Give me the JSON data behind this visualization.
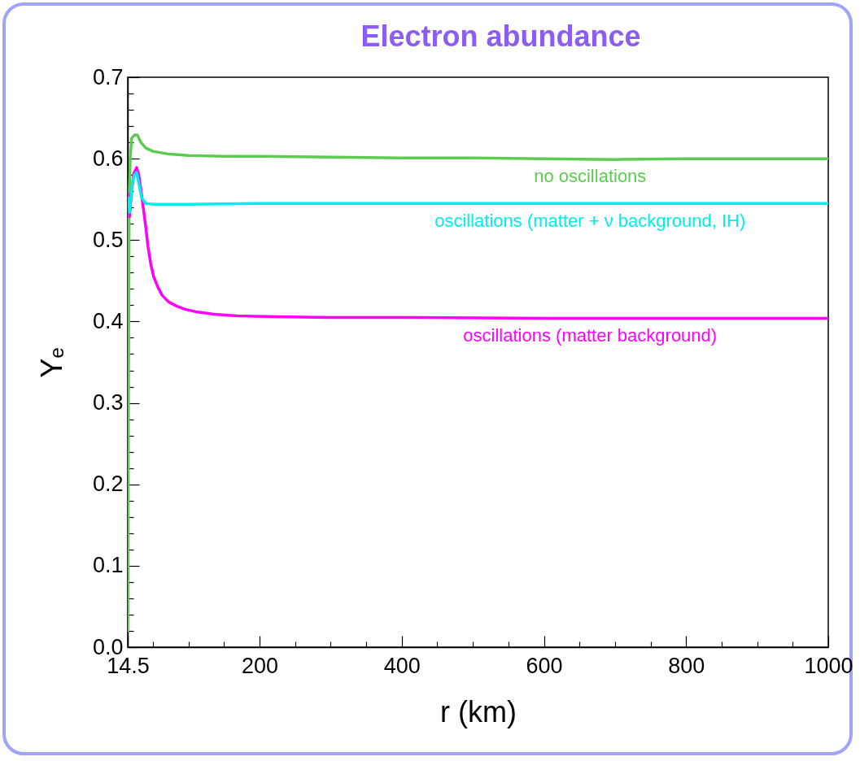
{
  "chart_data": {
    "type": "line",
    "title": "Electron abundance",
    "xlabel": "r (km)",
    "ylabel": "Yₑ",
    "xlim": [
      14.5,
      1000
    ],
    "ylim": [
      0,
      0.7
    ],
    "xticks": [
      14.5,
      {
        "value": 50,
        "label": null
      },
      {
        "value": 100,
        "label": null
      },
      {
        "value": 150,
        "label": null
      },
      200,
      {
        "value": 250,
        "label": null
      },
      {
        "value": 300,
        "label": null
      },
      {
        "value": 350,
        "label": null
      },
      400,
      {
        "value": 450,
        "label": null
      },
      {
        "value": 500,
        "label": null
      },
      {
        "value": 550,
        "label": null
      },
      600,
      {
        "value": 650,
        "label": null
      },
      {
        "value": 700,
        "label": null
      },
      {
        "value": 750,
        "label": null
      },
      800,
      {
        "value": 850,
        "label": null
      },
      {
        "value": 900,
        "label": null
      },
      {
        "value": 950,
        "label": null
      },
      1000
    ],
    "yticks": [
      {
        "value": 0,
        "label": "0.0"
      },
      {
        "value": 0.02,
        "label": null
      },
      {
        "value": 0.04,
        "label": null
      },
      {
        "value": 0.06,
        "label": null
      },
      {
        "value": 0.08,
        "label": null
      },
      0.1,
      {
        "value": 0.12,
        "label": null
      },
      {
        "value": 0.14,
        "label": null
      },
      {
        "value": 0.16,
        "label": null
      },
      {
        "value": 0.18,
        "label": null
      },
      0.2,
      {
        "value": 0.22,
        "label": null
      },
      {
        "value": 0.24,
        "label": null
      },
      {
        "value": 0.26,
        "label": null
      },
      {
        "value": 0.28,
        "label": null
      },
      0.3,
      {
        "value": 0.32,
        "label": null
      },
      {
        "value": 0.34,
        "label": null
      },
      {
        "value": 0.36,
        "label": null
      },
      {
        "value": 0.38,
        "label": null
      },
      0.4,
      {
        "value": 0.42,
        "label": null
      },
      {
        "value": 0.44,
        "label": null
      },
      {
        "value": 0.46,
        "label": null
      },
      {
        "value": 0.48,
        "label": null
      },
      0.5,
      {
        "value": 0.52,
        "label": null
      },
      {
        "value": 0.54,
        "label": null
      },
      {
        "value": 0.56,
        "label": null
      },
      {
        "value": 0.58,
        "label": null
      },
      0.6,
      {
        "value": 0.62,
        "label": null
      },
      {
        "value": 0.64,
        "label": null
      },
      {
        "value": 0.66,
        "label": null
      },
      {
        "value": 0.68,
        "label": null
      },
      0.7
    ],
    "grid": false,
    "legend": false,
    "line_style": "solid",
    "series": [
      {
        "name": "no oscillations",
        "color": "#5ccc50",
        "x": [
          14.5,
          15.5,
          16.5,
          18,
          20,
          24,
          28,
          33,
          40,
          50,
          70,
          100,
          150,
          200,
          300,
          400,
          500,
          600,
          700,
          800,
          900,
          1000
        ],
        "values": [
          0.02,
          0.3,
          0.55,
          0.6,
          0.625,
          0.629,
          0.629,
          0.62,
          0.613,
          0.609,
          0.606,
          0.604,
          0.603,
          0.603,
          0.602,
          0.601,
          0.601,
          0.6,
          0.599,
          0.6,
          0.6,
          0.6
        ]
      },
      {
        "name": "oscillations (matter background)",
        "color": "#ff00ff",
        "x": [
          14.5,
          17,
          20,
          23,
          27,
          30,
          33,
          36,
          40,
          43,
          47,
          51,
          57,
          63,
          72,
          83,
          95,
          110,
          135,
          168,
          220,
          300,
          400,
          600,
          800,
          1000
        ],
        "values": [
          0.557,
          0.529,
          0.56,
          0.582,
          0.589,
          0.58,
          0.562,
          0.542,
          0.515,
          0.492,
          0.47,
          0.455,
          0.442,
          0.432,
          0.424,
          0.419,
          0.415,
          0.412,
          0.409,
          0.407,
          0.406,
          0.405,
          0.405,
          0.404,
          0.404,
          0.404
        ]
      },
      {
        "name": "oscillations (matter + ν background, IH)",
        "color": "#00eeee",
        "x": [
          15.5,
          17,
          19,
          21,
          24,
          27,
          30,
          34,
          40,
          50,
          70,
          100,
          200,
          400,
          600,
          800,
          1000
        ],
        "values": [
          0.552,
          0.534,
          0.55,
          0.57,
          0.58,
          0.583,
          0.57,
          0.552,
          0.545,
          0.544,
          0.544,
          0.544,
          0.545,
          0.545,
          0.545,
          0.545,
          0.545
        ]
      }
    ]
  }
}
